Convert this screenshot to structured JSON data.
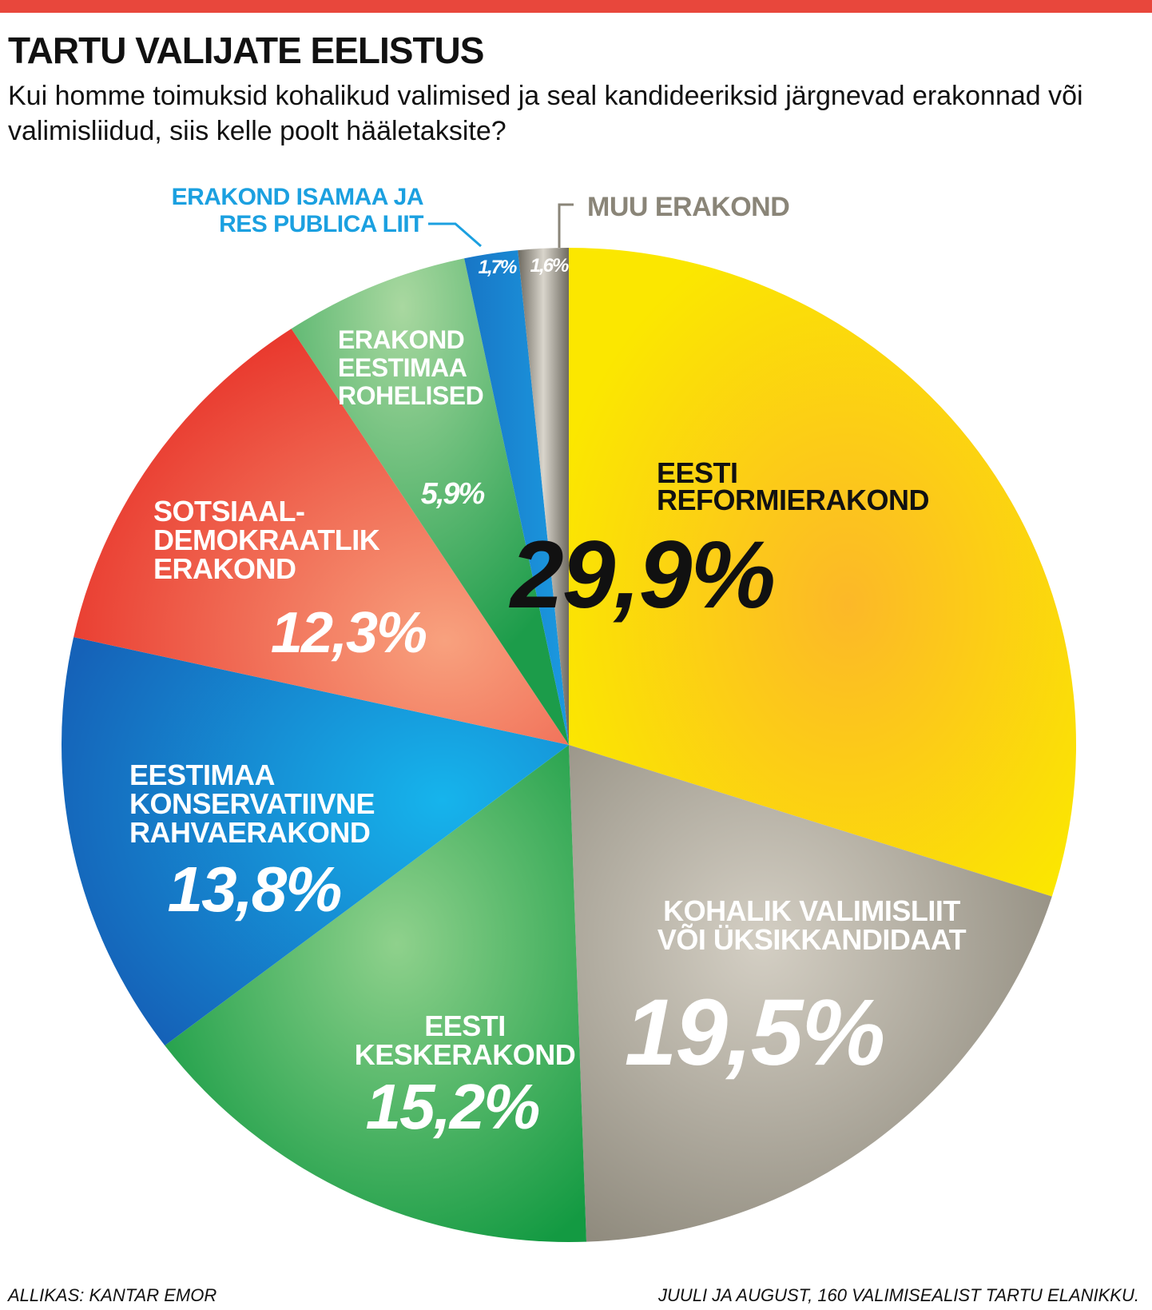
{
  "header": {
    "title": "TARTU VALIJATE EELISTUS",
    "subtitle": "Kui homme toimuksid kohalikud valimised ja seal kandideeriksid järgnevad erakonnad või valimisliidud, siis kelle poolt hääletaksite?"
  },
  "footer": {
    "source": "ALLIKAS: KANTAR EMOR",
    "note": "JUULI JA AUGUST, 160 VALIMISEALIST TARTU ELANIKKU."
  },
  "chart_data": {
    "type": "pie",
    "title": "TARTU VALIJATE EELISTUS",
    "start": "12 o'clock, clockwise",
    "legend": "none",
    "slices": [
      {
        "label": [
          "EESTI",
          "REFORMIERAKOND"
        ],
        "value": 29.9,
        "value_label": "29,9%",
        "color": "#fdd400",
        "label_color": "#111111"
      },
      {
        "label": [
          "KOHALIK VALIMISLIIT",
          "VÕI ÜKSIKKANDIDAAT"
        ],
        "value": 19.5,
        "value_label": "19,5%",
        "color": "#a8a293",
        "label_color": "#ffffff"
      },
      {
        "label": [
          "EESTI",
          "KESKERAKOND"
        ],
        "value": 15.2,
        "value_label": "15,2%",
        "color": "#25a24c",
        "label_color": "#ffffff"
      },
      {
        "label": [
          "EESTIMAA",
          "KONSERVATIIVNE",
          "RAHVAERAKOND"
        ],
        "value": 13.8,
        "value_label": "13,8%",
        "color": "#1e78c8",
        "label_color": "#ffffff"
      },
      {
        "label": [
          "SOTSIAAL-",
          "DEMOKRAATLIK",
          "ERAKOND"
        ],
        "value": 12.3,
        "value_label": "12,3%",
        "color": "#ee4a35",
        "label_color": "#ffffff"
      },
      {
        "label": [
          "ERAKOND",
          "EESTIMAA",
          "ROHELISED"
        ],
        "value": 5.9,
        "value_label": "5,9%",
        "color": "#3fae5c",
        "label_color": "#ffffff"
      },
      {
        "label": [
          "ERAKOND ISAMAA JA",
          "RES PUBLICA LIIT"
        ],
        "value": 1.7,
        "value_label": "1,7%",
        "color": "#1b8fd6",
        "label_color": "#1ba0e0"
      },
      {
        "label": [
          "MUU ERAKOND"
        ],
        "value": 1.6,
        "value_label": "1,6%",
        "color": "#8a8578",
        "label_color": "#8a8578"
      }
    ]
  }
}
